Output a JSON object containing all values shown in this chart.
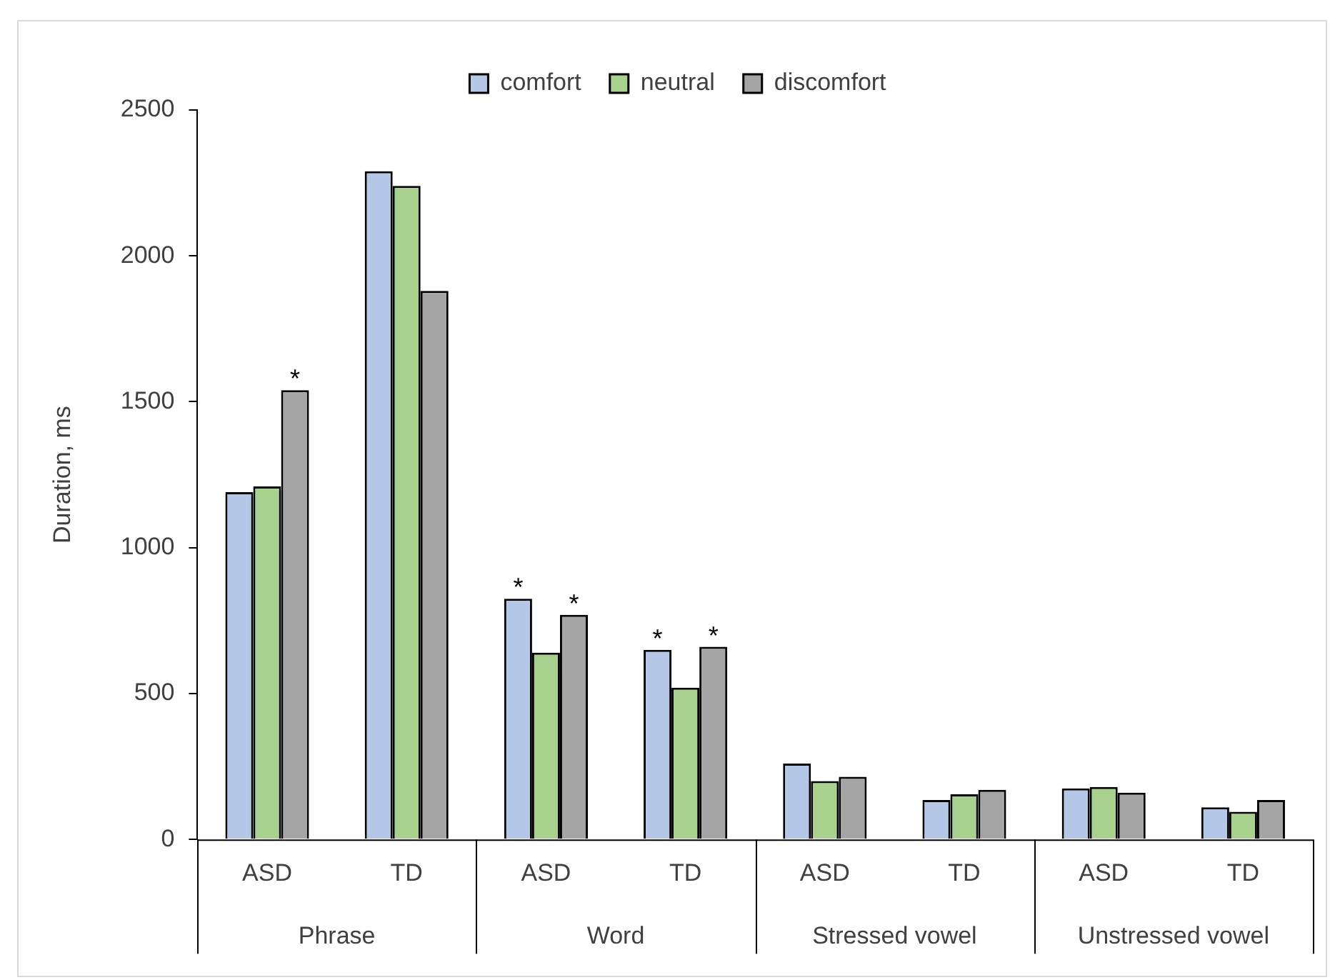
{
  "chart_data": {
    "type": "bar",
    "ylabel": "Duration, ms",
    "categories": [
      "ASD",
      "TD",
      "ASD",
      "TD",
      "ASD",
      "TD",
      "ASD",
      "TD"
    ],
    "series": [
      {
        "name": "comfort",
        "color": "#b4c7e7",
        "values": [
          1190,
          2290,
          825,
          650,
          260,
          135,
          175,
          110
        ],
        "value_labels": [
          null,
          null,
          "*",
          "*",
          null,
          null,
          null,
          null
        ]
      },
      {
        "name": "neutral",
        "color": "#a9d18e",
        "values": [
          1210,
          2240,
          640,
          520,
          200,
          155,
          180,
          95
        ],
        "value_labels": [
          null,
          null,
          null,
          null,
          null,
          null,
          null,
          null
        ]
      },
      {
        "name": "discomfort",
        "color": "#a5a5a5",
        "values": [
          1540,
          1880,
          770,
          660,
          215,
          170,
          160,
          135
        ],
        "value_labels": [
          "*",
          null,
          "*",
          "*",
          null,
          null,
          null,
          null
        ]
      }
    ],
    "annotations": [
      "Phrase",
      "Word",
      "Stressed vowel",
      "Unstressed vowel"
    ],
    "ylim": [
      0,
      2500
    ],
    "yticks": [
      0,
      500,
      1000,
      1500,
      2000,
      2500
    ],
    "grid": false,
    "legend": "top"
  }
}
